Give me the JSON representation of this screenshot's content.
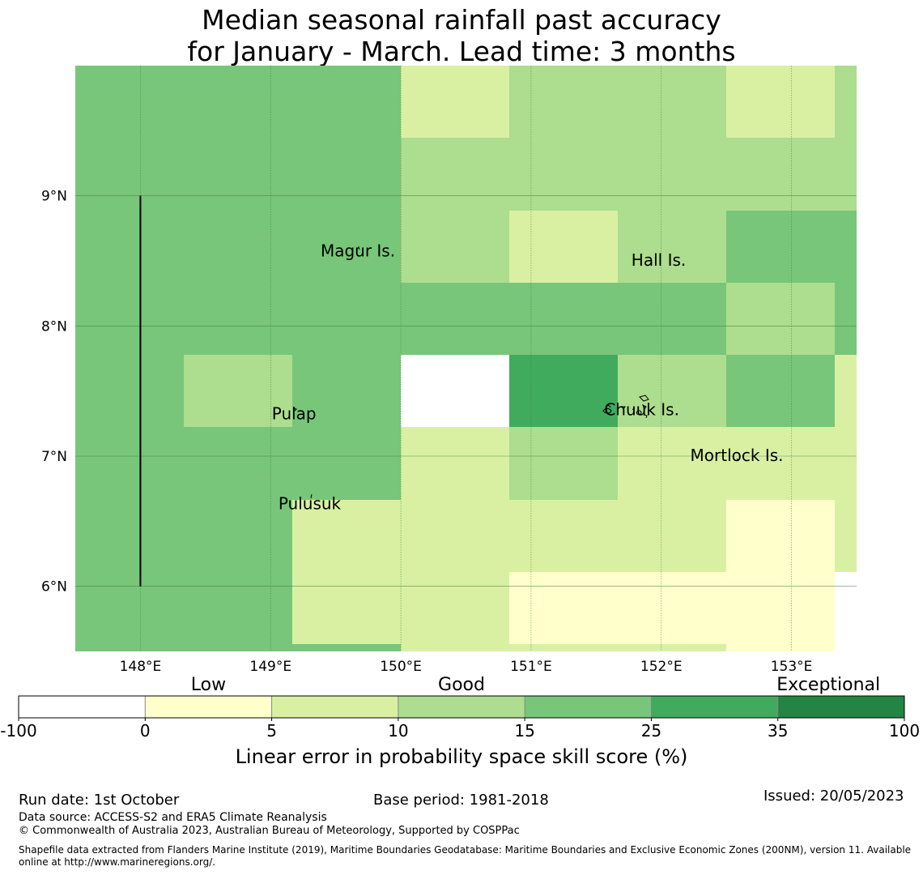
{
  "title": {
    "line1": "Median seasonal rainfall past accuracy",
    "line2": "for January - March. Lead time: 3 months"
  },
  "map": {
    "lon_range": [
      147.5,
      153.5
    ],
    "lat_range": [
      5.5,
      10.0
    ],
    "lon_ticks": [
      {
        "value": 148,
        "label": "148°E"
      },
      {
        "value": 149,
        "label": "149°E"
      },
      {
        "value": 150,
        "label": "150°E"
      },
      {
        "value": 151,
        "label": "151°E"
      },
      {
        "value": 152,
        "label": "152°E"
      },
      {
        "value": 153,
        "label": "153°E"
      }
    ],
    "lat_ticks": [
      {
        "value": 9,
        "label": "9°N"
      },
      {
        "value": 8,
        "label": "8°N"
      },
      {
        "value": 7,
        "label": "7°N"
      },
      {
        "value": 6,
        "label": "6°N"
      }
    ],
    "grid_cells": [
      {
        "lon": [
          147.5,
          150.0
        ],
        "lat": [
          5.5,
          10.0
        ],
        "cat": 4
      },
      {
        "lon": [
          150.0,
          150.833
        ],
        "lat": [
          9.444,
          10.0
        ],
        "cat": 2
      },
      {
        "lon": [
          150.833,
          152.5
        ],
        "lat": [
          9.444,
          10.0
        ],
        "cat": 3
      },
      {
        "lon": [
          152.5,
          153.333
        ],
        "lat": [
          9.444,
          10.0
        ],
        "cat": 2
      },
      {
        "lon": [
          153.333,
          153.5
        ],
        "lat": [
          9.444,
          10.0
        ],
        "cat": 3
      },
      {
        "lon": [
          150.0,
          153.5
        ],
        "lat": [
          8.889,
          9.444
        ],
        "cat": 3
      },
      {
        "lon": [
          150.0,
          150.833
        ],
        "lat": [
          8.333,
          8.889
        ],
        "cat": 3
      },
      {
        "lon": [
          150.833,
          151.667
        ],
        "lat": [
          8.333,
          8.889
        ],
        "cat": 2
      },
      {
        "lon": [
          151.667,
          152.5
        ],
        "lat": [
          8.333,
          8.889
        ],
        "cat": 3
      },
      {
        "lon": [
          152.5,
          153.5
        ],
        "lat": [
          8.333,
          8.889
        ],
        "cat": 4
      },
      {
        "lon": [
          150.0,
          152.5
        ],
        "lat": [
          7.778,
          8.333
        ],
        "cat": 4
      },
      {
        "lon": [
          152.5,
          153.333
        ],
        "lat": [
          7.778,
          8.333
        ],
        "cat": 3
      },
      {
        "lon": [
          153.333,
          153.5
        ],
        "lat": [
          7.778,
          8.333
        ],
        "cat": 4
      },
      {
        "lon": [
          148.333,
          149.167
        ],
        "lat": [
          7.222,
          7.778
        ],
        "cat": 3
      },
      {
        "lon": [
          150.833,
          151.667
        ],
        "lat": [
          7.222,
          7.778
        ],
        "cat": 5
      },
      {
        "lon": [
          151.667,
          152.5
        ],
        "lat": [
          7.222,
          7.778
        ],
        "cat": 3
      },
      {
        "lon": [
          152.5,
          153.333
        ],
        "lat": [
          7.222,
          7.778
        ],
        "cat": 4
      },
      {
        "lon": [
          153.333,
          153.5
        ],
        "lat": [
          7.222,
          7.778
        ],
        "cat": 2
      },
      {
        "lon": [
          150.0,
          150.833
        ],
        "lat": [
          6.667,
          7.222
        ],
        "cat": 2
      },
      {
        "lon": [
          150.833,
          151.667
        ],
        "lat": [
          6.667,
          7.222
        ],
        "cat": 3
      },
      {
        "lon": [
          151.667,
          153.5
        ],
        "lat": [
          6.667,
          7.222
        ],
        "cat": 2
      },
      {
        "lon": [
          149.167,
          152.5
        ],
        "lat": [
          6.111,
          6.667
        ],
        "cat": 2
      },
      {
        "lon": [
          152.5,
          153.333
        ],
        "lat": [
          6.111,
          6.667
        ],
        "cat": 1
      },
      {
        "lon": [
          153.333,
          153.5
        ],
        "lat": [
          6.111,
          6.667
        ],
        "cat": 2
      },
      {
        "lon": [
          149.167,
          150.833
        ],
        "lat": [
          5.556,
          6.111
        ],
        "cat": 2
      },
      {
        "lon": [
          150.833,
          153.333
        ],
        "lat": [
          5.556,
          6.111
        ],
        "cat": 1
      },
      {
        "lon": [
          150.0,
          152.5
        ],
        "lat": [
          5.5,
          5.556
        ],
        "cat": 2
      },
      {
        "lon": [
          152.5,
          153.333
        ],
        "lat": [
          5.5,
          5.556
        ],
        "cat": 1
      }
    ],
    "boundary_line": {
      "lon": 148.0,
      "lat": [
        6.0,
        9.0
      ]
    },
    "places": [
      {
        "name": "Magur Is.",
        "lon": 149.67,
        "lat": 8.62
      },
      {
        "name": "Hall Is.",
        "lon": 151.98,
        "lat": 8.55
      },
      {
        "name": "Pulap",
        "lon": 149.18,
        "lat": 7.37
      },
      {
        "name": "Chuuk Is.",
        "lon": 151.85,
        "lat": 7.4
      },
      {
        "name": "Mortlock Is.",
        "lon": 152.58,
        "lat": 7.05
      },
      {
        "name": "Pulusuk",
        "lon": 149.3,
        "lat": 6.68
      }
    ]
  },
  "legend": {
    "category_labels": [
      {
        "text": "Low",
        "at_tick": 1.5
      },
      {
        "text": "Good",
        "at_tick": 3.5
      },
      {
        "text": "Exceptional",
        "at_tick": 6.4
      }
    ],
    "bins": [
      {
        "from": "-100",
        "to": "0",
        "color": "#ffffff"
      },
      {
        "from": "0",
        "to": "5",
        "color": "#ffffcc"
      },
      {
        "from": "5",
        "to": "10",
        "color": "#d9f0a3"
      },
      {
        "from": "10",
        "to": "15",
        "color": "#addd8e"
      },
      {
        "from": "15",
        "to": "25",
        "color": "#78c679"
      },
      {
        "from": "25",
        "to": "35",
        "color": "#41ab5d"
      },
      {
        "from": "35",
        "to": "100",
        "color": "#238443"
      }
    ],
    "tick_labels": [
      "-100",
      "0",
      "5",
      "10",
      "15",
      "25",
      "35",
      "100"
    ],
    "axis_label": "Linear error in probability space skill score (%)"
  },
  "footer": {
    "run_date": "Run date: 1st October",
    "base_period": "Base period: 1981-2018",
    "issued": "Issued: 20/05/2023",
    "data_source": "Data source: ACCESS-S2 and ERA5 Climate Reanalysis",
    "copyright": "© Commonwealth of Australia 2023, Australian Bureau of Meteorology, Supported by COSPPac",
    "shapefile_line1": "Shapefile data extracted from Flanders Marine Institute (2019), Maritime Boundaries Geodatabase: Maritime Boundaries and Exclusive Economic Zones (200NM), version 11. Available",
    "shapefile_line2": "online at http://www.marineregions.org/."
  }
}
